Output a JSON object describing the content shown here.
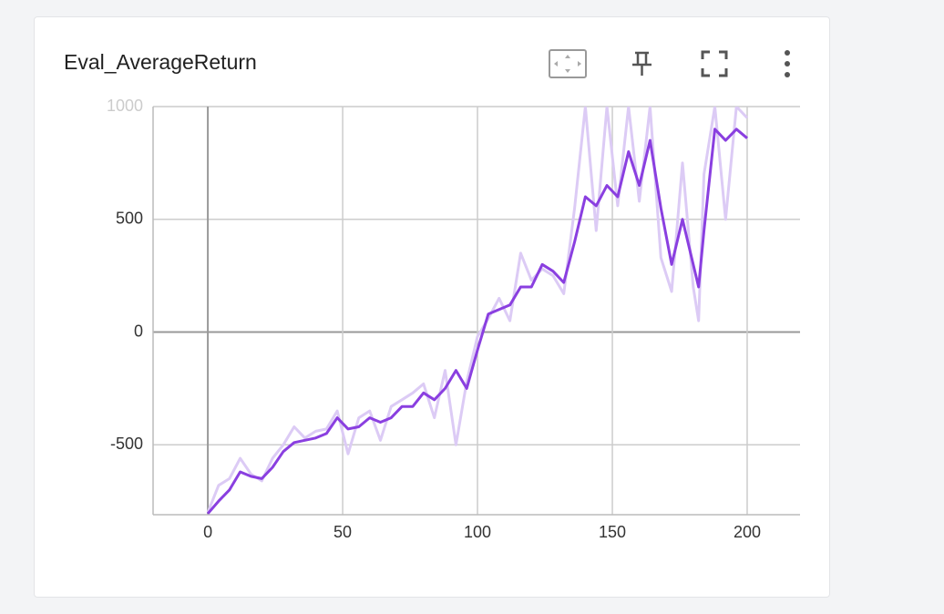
{
  "chart_data": {
    "type": "line",
    "title": "Eval_AverageReturn",
    "x": [
      0,
      4,
      8,
      12,
      16,
      20,
      24,
      28,
      32,
      36,
      40,
      44,
      48,
      52,
      56,
      60,
      64,
      68,
      72,
      76,
      80,
      84,
      88,
      92,
      96,
      100,
      104,
      108,
      112,
      116,
      120,
      124,
      128,
      132,
      136,
      140,
      144,
      148,
      152,
      156,
      160,
      164,
      168,
      172,
      176,
      180,
      182,
      184,
      188,
      192,
      196,
      200
    ],
    "series": [
      {
        "color": "#dccbf5",
        "values": [
          -800,
          -680,
          -650,
          -560,
          -630,
          -660,
          -560,
          -500,
          -420,
          -470,
          -440,
          -430,
          -350,
          -540,
          -380,
          -350,
          -480,
          -330,
          -300,
          -270,
          -230,
          -380,
          -170,
          -500,
          -220,
          -20,
          60,
          150,
          50,
          350,
          230,
          280,
          250,
          170,
          550,
          1000,
          450,
          1000,
          560,
          1000,
          580,
          1000,
          330,
          180,
          750,
          200,
          50,
          700,
          1000,
          500,
          1000,
          950
        ]
      },
      {
        "color": "#8a3fe0",
        "values": [
          -805,
          -750,
          -700,
          -620,
          -640,
          -650,
          -600,
          -530,
          -490,
          -480,
          -470,
          -450,
          -380,
          -430,
          -420,
          -380,
          -400,
          -380,
          -330,
          -330,
          -270,
          -300,
          -250,
          -170,
          -250,
          -80,
          80,
          100,
          120,
          200,
          200,
          300,
          270,
          220,
          400,
          600,
          560,
          650,
          600,
          800,
          650,
          850,
          550,
          300,
          500,
          300,
          200,
          450,
          900,
          850,
          900,
          860
        ]
      }
    ],
    "xlim": [
      -20.3,
      219.6
    ],
    "xticks": [
      0,
      50,
      100,
      150,
      200
    ],
    "ylim": [
      -810,
      1000
    ],
    "yticks": [
      -500,
      0,
      500,
      1000
    ],
    "grid": true
  }
}
